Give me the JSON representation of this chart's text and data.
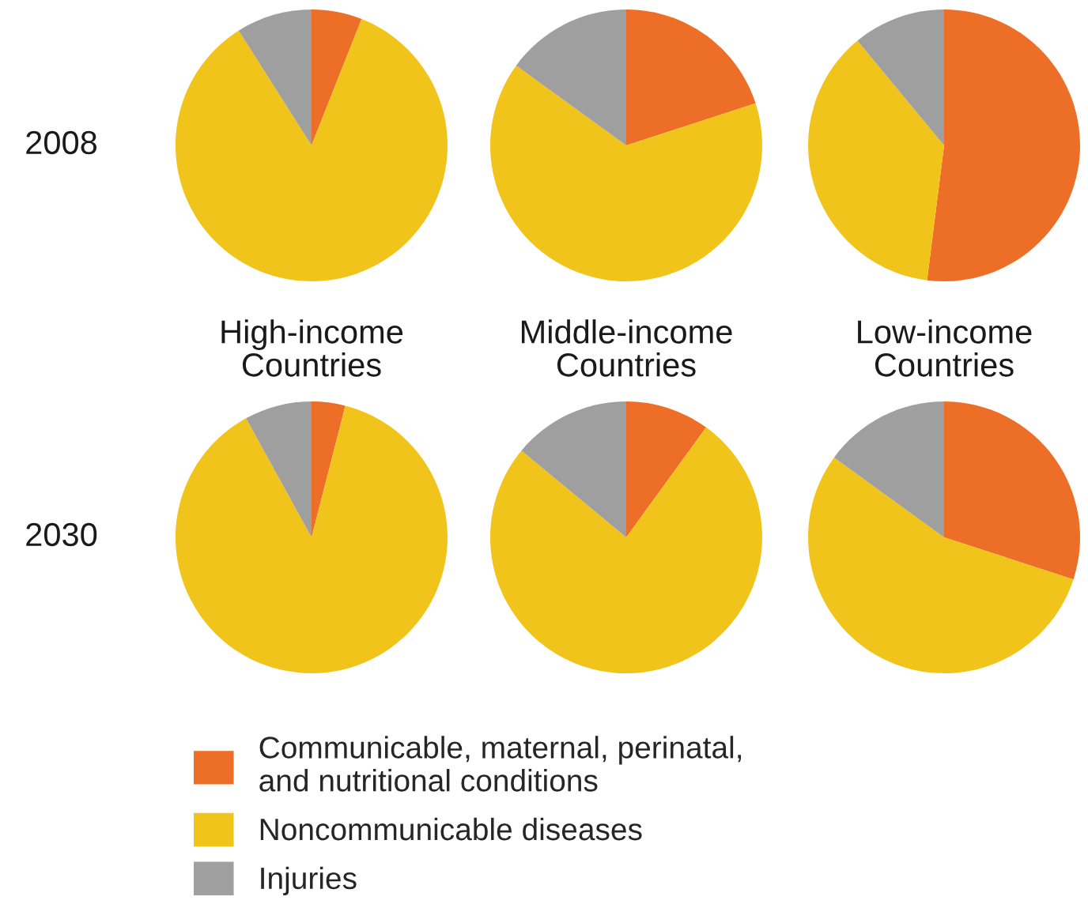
{
  "chart_data": [
    {
      "type": "pie",
      "ylabel": "2008",
      "categories": [
        "Communicable, maternal, perinatal,\nand nutritional conditions",
        "Noncommunicable diseases",
        "Injuries"
      ],
      "values": [
        6,
        85,
        9
      ],
      "colors": [
        "#ec6e27",
        "#f1c41c",
        "#a09fa0"
      ],
      "xlabel": "High-income\nCountries",
      "legend": "bottom"
    },
    {
      "type": "pie",
      "categories": [
        null,
        null,
        null
      ],
      "values": [
        20,
        65,
        15
      ],
      "colors": [
        "#ec6e27",
        "#f1c41c",
        "#a09fa0"
      ],
      "xlabel": "Middle-income\nCountries"
    },
    {
      "type": "pie",
      "categories": [
        null,
        null,
        null
      ],
      "values": [
        52,
        37,
        11
      ],
      "colors": [
        "#ec6e27",
        "#f1c41c",
        "#a09fa0"
      ],
      "xlabel": "Low-income\nCountries"
    },
    {
      "type": "pie",
      "ylabel": "2030",
      "categories": [
        null,
        null,
        null
      ],
      "values": [
        4,
        88,
        8
      ],
      "colors": [
        "#ec6e27",
        "#f1c41c",
        "#a09fa0"
      ]
    },
    {
      "type": "pie",
      "categories": [
        null,
        null,
        null
      ],
      "values": [
        10,
        76,
        14
      ],
      "colors": [
        "#ec6e27",
        "#f1c41c",
        "#a09fa0"
      ]
    },
    {
      "type": "pie",
      "categories": [
        null,
        null,
        null
      ],
      "values": [
        30,
        55,
        15
      ],
      "colors": [
        "#ec6e27",
        "#f1c41c",
        "#a09fa0"
      ]
    }
  ]
}
